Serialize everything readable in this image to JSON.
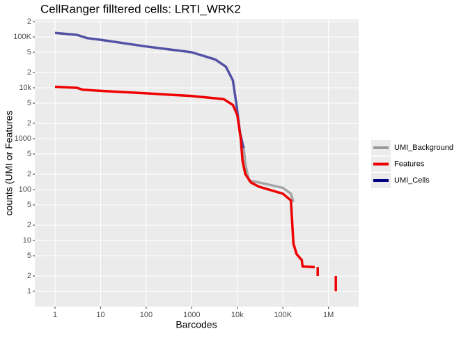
{
  "chart_data": {
    "type": "line",
    "title": "CellRanger filltered cells: LRTI_WRK2",
    "x_label": "Barcodes",
    "y_label": "counts (UMI or Features",
    "log_x": true,
    "log_y": true,
    "grid": true,
    "legend_position": "right",
    "xlim": [
      0.36,
      4600000
    ],
    "ylim": [
      0.5,
      220000
    ],
    "xticks": [
      1,
      10,
      100,
      1000,
      {
        "value": 10000,
        "label": "10k"
      },
      {
        "value": 100000,
        "label": "100K"
      },
      {
        "value": 1000000,
        "label": "1M"
      }
    ],
    "yticks": [
      1,
      2,
      5,
      10,
      {
        "value": 20,
        "label": "2"
      },
      {
        "value": 50,
        "label": "5"
      },
      100,
      {
        "value": 200,
        "label": "2"
      },
      {
        "value": 500,
        "label": "5"
      },
      1000,
      {
        "value": 2000,
        "label": "2"
      },
      {
        "value": 5000,
        "label": "5"
      },
      {
        "value": 10000,
        "label": "10k"
      },
      {
        "value": 20000,
        "label": "2"
      },
      {
        "value": 50000,
        "label": "5"
      },
      {
        "value": 100000,
        "label": "100K"
      },
      {
        "value": 200000,
        "label": "2"
      }
    ],
    "series": [
      {
        "name": "UMI_Background",
        "color": "#999999",
        "x": [
          13700,
          15000,
          18000,
          30000,
          100000,
          150000,
          170000
        ],
        "values": [
          700,
          320,
          150,
          138,
          108,
          83,
          57
        ]
      },
      {
        "name": "Features",
        "color": "#ee0000",
        "x": [
          1,
          3,
          4,
          10,
          100,
          1000,
          5000,
          8000,
          10000,
          12000,
          13000,
          15000,
          20000,
          30000,
          100000,
          150000,
          160000,
          170000,
          200000,
          260000,
          270000,
          500000,
          null,
          580000,
          580000,
          null,
          1450000,
          1450000
        ],
        "values": [
          10500,
          10000,
          9200,
          8700,
          7800,
          6900,
          6000,
          4600,
          2900,
          950,
          370,
          200,
          137,
          114,
          83,
          61,
          22,
          8.7,
          5.4,
          4.1,
          3.1,
          3,
          null,
          3,
          2,
          null,
          2,
          1
        ]
      },
      {
        "name": "UMI_Cells",
        "color": "#000080",
        "x": [
          1,
          3,
          5,
          10,
          100,
          1000,
          3300,
          5600,
          8000,
          9600,
          11500,
          13700
        ],
        "values": [
          120000,
          110000,
          95000,
          88000,
          65000,
          50000,
          36000,
          26000,
          14000,
          4600,
          1300,
          660
        ]
      }
    ]
  }
}
